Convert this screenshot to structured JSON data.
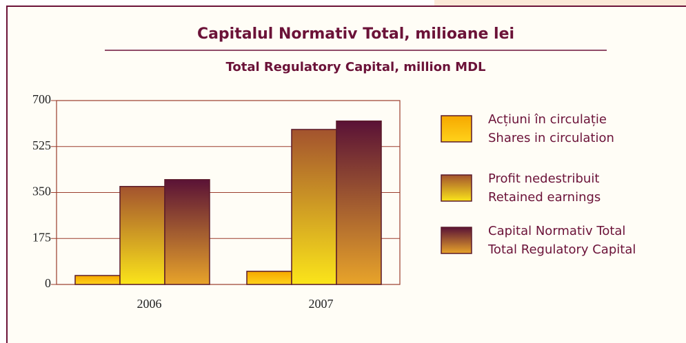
{
  "chart_data": {
    "type": "bar",
    "title": "Capitalul Normativ Total, milioane lei",
    "subtitle": "Total Regulatory Capital, million MDL",
    "categories": [
      "2006",
      "2007"
    ],
    "series": [
      {
        "name": [
          "Acțiuni în circulație",
          "Shares in circulation"
        ],
        "color": [
          "#f6a800",
          "#ffd21a"
        ],
        "values": [
          34,
          50
        ]
      },
      {
        "name": [
          "Profit nedestribuit",
          "Retained earnings"
        ],
        "color": [
          "#a3532e",
          "#fbe51a"
        ],
        "values": [
          373,
          590
        ]
      },
      {
        "name": [
          "Capital Normativ Total",
          "Total Regulatory Capital"
        ],
        "color": [
          "#5a1236",
          "#e8a42a"
        ],
        "values": [
          399,
          622
        ]
      }
    ],
    "ylim": [
      0,
      700
    ],
    "yticks": [
      0,
      175,
      350,
      525,
      700
    ],
    "grid": true
  }
}
